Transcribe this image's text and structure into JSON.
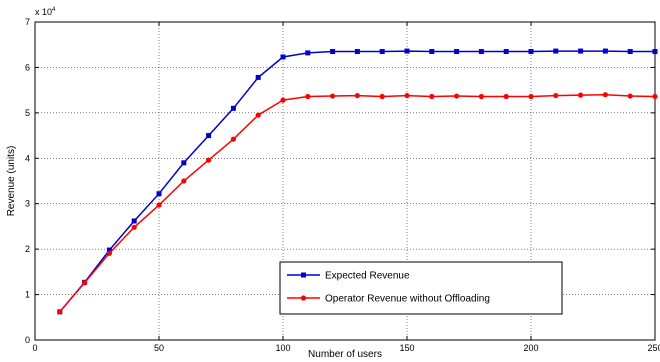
{
  "chart_data": {
    "type": "line",
    "xlabel": "Number of users",
    "ylabel": "Revenue (units)",
    "exponent_base": "x 10",
    "exponent_power": "4",
    "xlim": [
      0,
      250
    ],
    "ylim": [
      0,
      70000
    ],
    "xticks": [
      0,
      50,
      100,
      150,
      200,
      250
    ],
    "yticks": [
      0,
      10000,
      20000,
      30000,
      40000,
      50000,
      60000,
      70000
    ],
    "ytick_labels": [
      "0",
      "1",
      "2",
      "3",
      "4",
      "5",
      "6",
      "7"
    ],
    "grid": true,
    "legend_position": "lower-right",
    "x": [
      10,
      20,
      30,
      40,
      50,
      60,
      70,
      80,
      90,
      100,
      110,
      120,
      130,
      140,
      150,
      160,
      170,
      180,
      190,
      200,
      210,
      220,
      230,
      240,
      250
    ],
    "series": [
      {
        "name": "Expected Revenue",
        "color": "#0000cc",
        "marker": "square",
        "values": [
          6200,
          12700,
          19800,
          26200,
          32200,
          39000,
          45000,
          51000,
          57800,
          62300,
          63200,
          63500,
          63500,
          63500,
          63600,
          63500,
          63500,
          63500,
          63500,
          63500,
          63600,
          63600,
          63600,
          63500,
          63500
        ]
      },
      {
        "name": "Operator Revenue without Offloading",
        "color": "#ff0000",
        "marker": "circle",
        "values": [
          6200,
          12600,
          19100,
          24800,
          29700,
          35000,
          39600,
          44200,
          49500,
          52800,
          53600,
          53700,
          53800,
          53600,
          53800,
          53600,
          53700,
          53600,
          53600,
          53600,
          53800,
          53900,
          54000,
          53700,
          53600
        ]
      }
    ]
  }
}
